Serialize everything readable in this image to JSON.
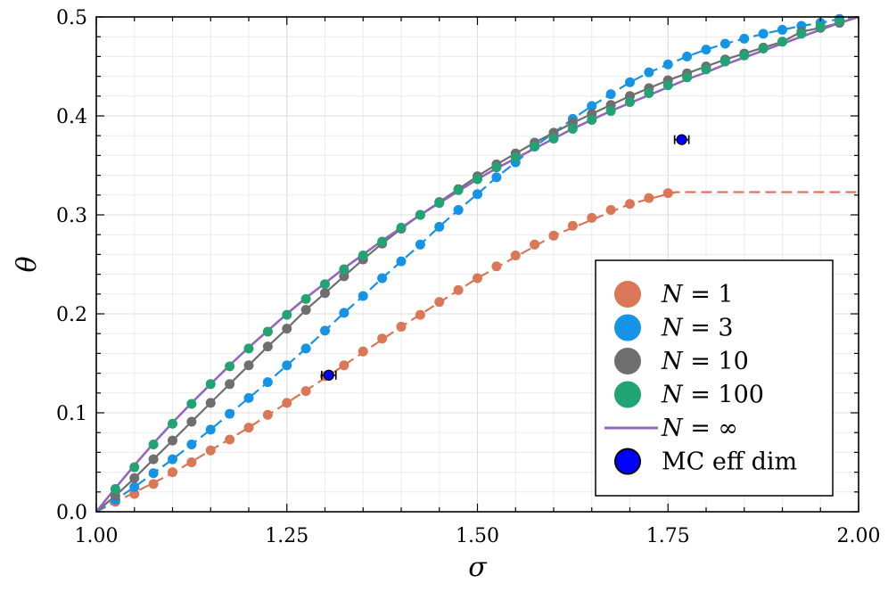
{
  "chart_data": {
    "type": "line",
    "xlabel": "σ",
    "ylabel": "θ",
    "xlim": [
      1.0,
      2.0
    ],
    "ylim": [
      0.0,
      0.5
    ],
    "xticks": [
      1.0,
      1.25,
      1.5,
      1.75,
      2.0
    ],
    "xtick_labels": [
      "1.00",
      "1.25",
      "1.50",
      "1.75",
      "2.00"
    ],
    "yticks": [
      0.0,
      0.1,
      0.2,
      0.3,
      0.4,
      0.5
    ],
    "ytick_labels": [
      "0.0",
      "0.1",
      "0.2",
      "0.3",
      "0.4",
      "0.5"
    ],
    "grid": true,
    "legend_position": "bottom-right",
    "series": [
      {
        "name": "N = 1",
        "legend_label": "N = 1",
        "color": "#d97757",
        "style": "dashed-line-with-markers",
        "x": [
          1.025,
          1.05,
          1.075,
          1.1,
          1.125,
          1.15,
          1.175,
          1.2,
          1.225,
          1.25,
          1.275,
          1.3,
          1.325,
          1.35,
          1.375,
          1.4,
          1.425,
          1.45,
          1.475,
          1.5,
          1.525,
          1.55,
          1.575,
          1.6,
          1.625,
          1.65,
          1.675,
          1.7,
          1.725,
          1.75
        ],
        "y": [
          0.01,
          0.018,
          0.028,
          0.04,
          0.05,
          0.062,
          0.073,
          0.085,
          0.098,
          0.11,
          0.122,
          0.137,
          0.148,
          0.162,
          0.175,
          0.187,
          0.199,
          0.212,
          0.224,
          0.236,
          0.248,
          0.259,
          0.27,
          0.279,
          0.289,
          0.297,
          0.305,
          0.311,
          0.317,
          0.322
        ],
        "curve_x": [
          1.0,
          1.1,
          1.2,
          1.3,
          1.4,
          1.5,
          1.6,
          1.7,
          1.75,
          1.76,
          1.8,
          1.9,
          2.0
        ],
        "curve_y": [
          0.0,
          0.039,
          0.085,
          0.135,
          0.187,
          0.236,
          0.279,
          0.311,
          0.321,
          0.323,
          0.323,
          0.323,
          0.323
        ]
      },
      {
        "name": "N = 3",
        "legend_label": "N = 3",
        "color": "#1593e6",
        "style": "dashed-line-with-markers",
        "x": [
          1.025,
          1.05,
          1.075,
          1.1,
          1.125,
          1.15,
          1.175,
          1.2,
          1.225,
          1.25,
          1.275,
          1.3,
          1.325,
          1.35,
          1.375,
          1.4,
          1.425,
          1.45,
          1.475,
          1.5,
          1.525,
          1.55,
          1.575,
          1.6,
          1.625,
          1.65,
          1.675,
          1.7,
          1.725,
          1.75,
          1.775,
          1.8,
          1.825,
          1.85,
          1.875,
          1.9,
          1.925,
          1.95,
          1.975
        ],
        "y": [
          0.012,
          0.025,
          0.039,
          0.053,
          0.068,
          0.083,
          0.099,
          0.115,
          0.131,
          0.148,
          0.165,
          0.183,
          0.201,
          0.218,
          0.236,
          0.253,
          0.27,
          0.288,
          0.305,
          0.321,
          0.338,
          0.353,
          0.369,
          0.383,
          0.397,
          0.41,
          0.422,
          0.434,
          0.444,
          0.452,
          0.46,
          0.467,
          0.473,
          0.478,
          0.483,
          0.487,
          0.491,
          0.494,
          0.498
        ],
        "curve_x": [
          1.0,
          1.025,
          1.05,
          1.075,
          1.1,
          1.125,
          1.15,
          1.175,
          1.2,
          1.225,
          1.25,
          1.275,
          1.3,
          1.325,
          1.35,
          1.375,
          1.4,
          1.425,
          1.45,
          1.475,
          1.5,
          1.525,
          1.55,
          1.575,
          1.6,
          1.625,
          1.65,
          1.675,
          1.7,
          1.725,
          1.75,
          1.775,
          1.8,
          1.825,
          1.85,
          1.875,
          1.9,
          1.925,
          1.95,
          1.975,
          2.0
        ],
        "curve_y": [
          0.0,
          0.012,
          0.025,
          0.039,
          0.053,
          0.068,
          0.083,
          0.099,
          0.115,
          0.131,
          0.148,
          0.165,
          0.183,
          0.201,
          0.218,
          0.236,
          0.253,
          0.27,
          0.288,
          0.305,
          0.321,
          0.338,
          0.353,
          0.369,
          0.383,
          0.397,
          0.41,
          0.422,
          0.434,
          0.444,
          0.452,
          0.46,
          0.467,
          0.473,
          0.478,
          0.483,
          0.487,
          0.491,
          0.494,
          0.498,
          0.5
        ]
      },
      {
        "name": "N = 10",
        "legend_label": "N = 10",
        "color": "#6e6e6e",
        "style": "line-with-markers",
        "x": [
          1.025,
          1.05,
          1.075,
          1.1,
          1.125,
          1.15,
          1.175,
          1.2,
          1.225,
          1.25,
          1.275,
          1.3,
          1.325,
          1.35,
          1.375,
          1.4,
          1.425,
          1.45,
          1.475,
          1.5,
          1.525,
          1.55,
          1.575,
          1.6,
          1.625,
          1.65,
          1.675,
          1.7,
          1.725,
          1.75,
          1.775,
          1.8,
          1.825,
          1.85,
          1.875,
          1.9,
          1.925,
          1.95,
          1.975
        ],
        "y": [
          0.016,
          0.034,
          0.053,
          0.072,
          0.091,
          0.11,
          0.129,
          0.148,
          0.167,
          0.185,
          0.204,
          0.221,
          0.238,
          0.255,
          0.271,
          0.286,
          0.3,
          0.313,
          0.326,
          0.339,
          0.351,
          0.362,
          0.373,
          0.383,
          0.393,
          0.402,
          0.411,
          0.42,
          0.428,
          0.436,
          0.443,
          0.45,
          0.457,
          0.463,
          0.469,
          0.475,
          0.485,
          0.489,
          0.494
        ],
        "curve_x": [
          1.0,
          1.025,
          1.05,
          1.075,
          1.1,
          1.125,
          1.15,
          1.175,
          1.2,
          1.225,
          1.25,
          1.275,
          1.3,
          1.325,
          1.35,
          1.375,
          1.4,
          1.425,
          1.45,
          1.475,
          1.5,
          1.525,
          1.55,
          1.575,
          1.6,
          1.625,
          1.65,
          1.675,
          1.7,
          1.725,
          1.75,
          1.775,
          1.8,
          1.825,
          1.85,
          1.875,
          1.9,
          1.925,
          1.95,
          1.975,
          2.0
        ],
        "curve_y": [
          0.0,
          0.016,
          0.034,
          0.053,
          0.072,
          0.091,
          0.11,
          0.129,
          0.148,
          0.167,
          0.185,
          0.204,
          0.221,
          0.238,
          0.255,
          0.271,
          0.286,
          0.3,
          0.313,
          0.326,
          0.339,
          0.351,
          0.362,
          0.373,
          0.383,
          0.393,
          0.402,
          0.411,
          0.42,
          0.428,
          0.436,
          0.443,
          0.45,
          0.457,
          0.463,
          0.469,
          0.475,
          0.485,
          0.489,
          0.494,
          0.5
        ]
      },
      {
        "name": "N = 100",
        "legend_label": "N = 100",
        "color": "#22a374",
        "style": "markers",
        "x": [
          1.025,
          1.05,
          1.075,
          1.1,
          1.125,
          1.15,
          1.175,
          1.2,
          1.225,
          1.25,
          1.275,
          1.3,
          1.325,
          1.35,
          1.375,
          1.4,
          1.425,
          1.45,
          1.475,
          1.5,
          1.525,
          1.55,
          1.575,
          1.6,
          1.625,
          1.65,
          1.675,
          1.7,
          1.725,
          1.75,
          1.775,
          1.8,
          1.825,
          1.85,
          1.875,
          1.9,
          1.925,
          1.95,
          1.975
        ],
        "y": [
          0.023,
          0.045,
          0.068,
          0.089,
          0.109,
          0.129,
          0.147,
          0.165,
          0.182,
          0.199,
          0.215,
          0.23,
          0.245,
          0.259,
          0.273,
          0.287,
          0.3,
          0.312,
          0.325,
          0.336,
          0.348,
          0.358,
          0.369,
          0.377,
          0.387,
          0.396,
          0.405,
          0.414,
          0.423,
          0.431,
          0.439,
          0.447,
          0.455,
          0.461,
          0.468,
          0.475,
          0.483,
          0.49,
          0.496
        ]
      },
      {
        "name": "N = ∞",
        "legend_label": "N = ∞",
        "color": "#9467bd",
        "style": "line",
        "x": [
          1.0,
          1.025,
          1.05,
          1.075,
          1.1,
          1.125,
          1.15,
          1.175,
          1.2,
          1.225,
          1.25,
          1.275,
          1.3,
          1.325,
          1.35,
          1.375,
          1.4,
          1.425,
          1.45,
          1.475,
          1.5,
          1.525,
          1.55,
          1.575,
          1.6,
          1.625,
          1.65,
          1.675,
          1.7,
          1.725,
          1.75,
          1.775,
          1.8,
          1.825,
          1.85,
          1.875,
          1.9,
          1.925,
          1.95,
          1.975,
          2.0
        ],
        "y": [
          0.0,
          0.024,
          0.047,
          0.069,
          0.09,
          0.11,
          0.129,
          0.148,
          0.166,
          0.183,
          0.2,
          0.216,
          0.231,
          0.246,
          0.26,
          0.274,
          0.287,
          0.3,
          0.312,
          0.324,
          0.336,
          0.347,
          0.357,
          0.367,
          0.377,
          0.387,
          0.396,
          0.405,
          0.413,
          0.421,
          0.429,
          0.437,
          0.444,
          0.452,
          0.459,
          0.466,
          0.473,
          0.48,
          0.487,
          0.494,
          0.5
        ]
      },
      {
        "name": "MC eff dim",
        "legend_label": "MC eff dim",
        "color": "#0000ff",
        "style": "markers-with-errorbars",
        "x": [
          1.305,
          1.768
        ],
        "y": [
          0.138,
          0.376
        ]
      }
    ]
  }
}
